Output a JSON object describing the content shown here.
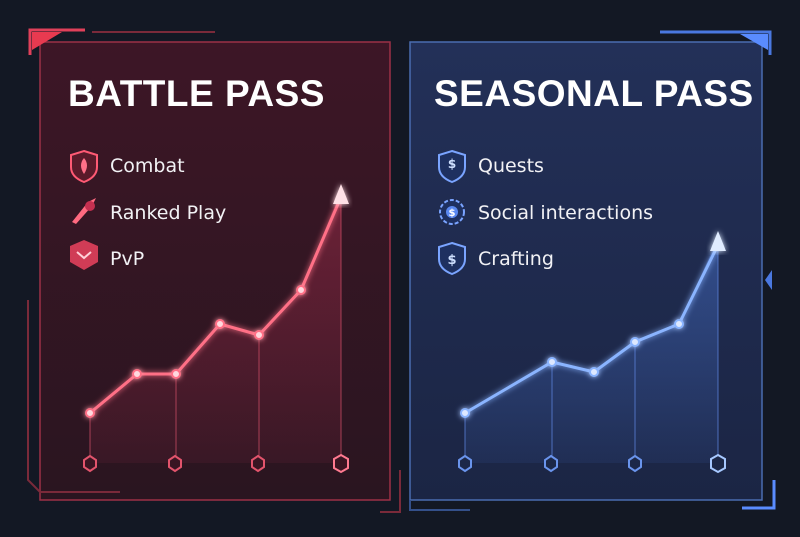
{
  "panels": [
    {
      "title": "BATTLE PASS",
      "items": [
        "Combat",
        "Ranked Play",
        "PvP"
      ]
    },
    {
      "title": "SEASONAL PASS",
      "items": [
        "Quests",
        "Social interactions",
        "Crafting"
      ]
    }
  ]
}
